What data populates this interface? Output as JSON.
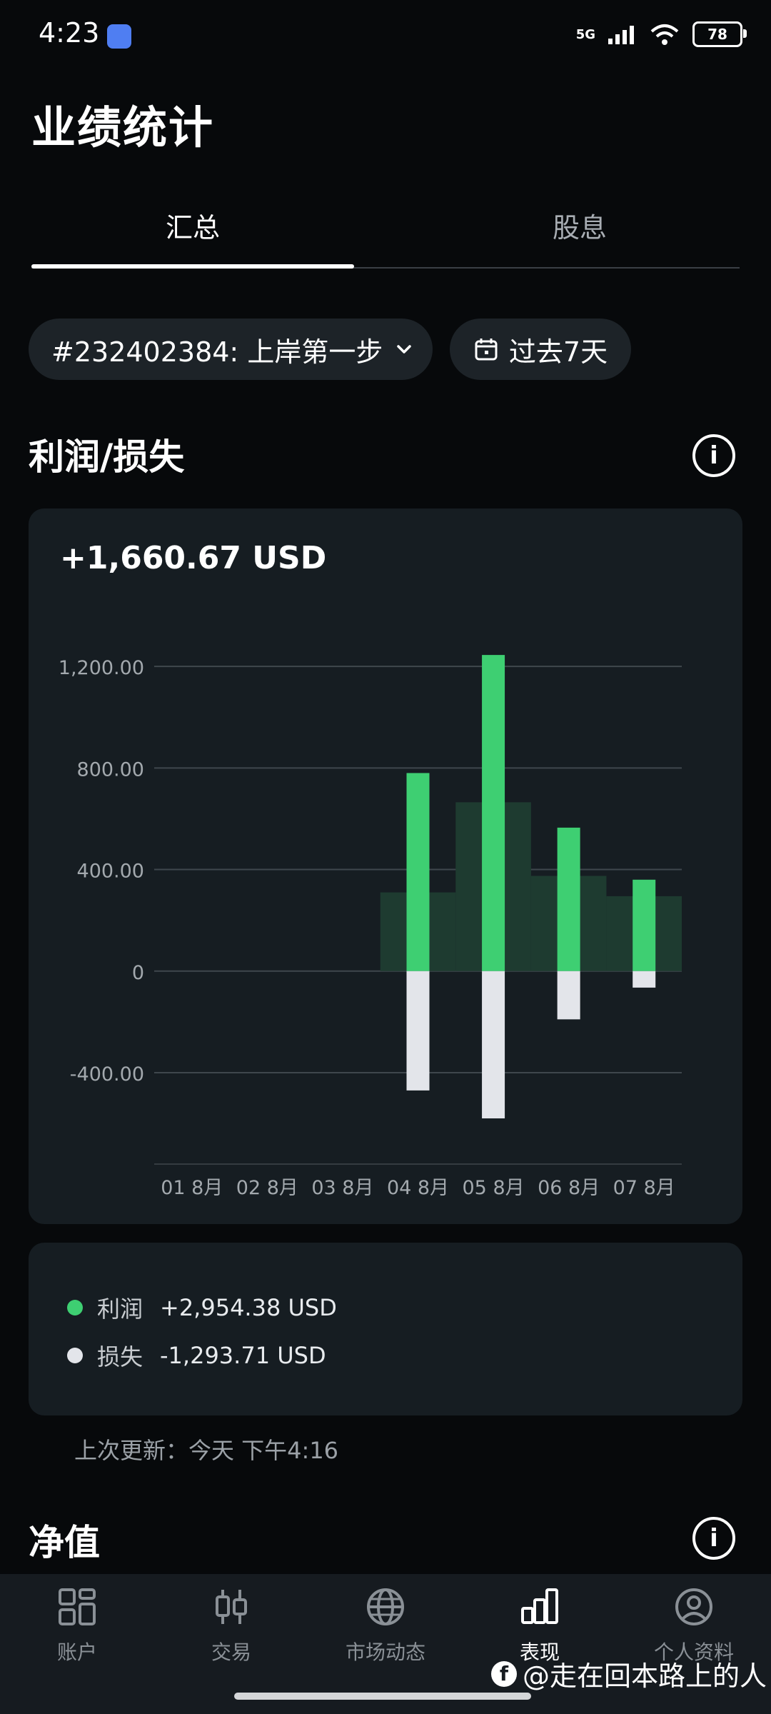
{
  "status": {
    "time": "4:23",
    "network": "5G",
    "battery": "78"
  },
  "header": {
    "title": "业绩统计"
  },
  "tabs": [
    {
      "label": "汇总"
    },
    {
      "label": "股息"
    }
  ],
  "filters": {
    "account": "#232402384: 上岸第一步",
    "period": "过去7天"
  },
  "profit_loss": {
    "title": "利润/损失",
    "total": "+1,660.67 USD",
    "legend": [
      {
        "label": "利润",
        "value": "+2,954.38 USD",
        "color": "#3ecf72"
      },
      {
        "label": "损失",
        "value": "-1,293.71 USD",
        "color": "#e3e5ea"
      }
    ],
    "last_update": "上次更新：今天 下午4:16"
  },
  "chart_data": {
    "type": "bar",
    "categories": [
      "01 8月",
      "02 8月",
      "03 8月",
      "04 8月",
      "05 8月",
      "06 8月",
      "07 8月"
    ],
    "series": [
      {
        "name": "利润",
        "values": [
          0,
          0,
          0,
          780,
          1245,
          565,
          360
        ],
        "color": "#3ecf72"
      },
      {
        "name": "损失",
        "values": [
          0,
          0,
          0,
          -470,
          -580,
          -190,
          -65
        ],
        "color": "#e3e5ea"
      }
    ],
    "net": [
      0,
      0,
      0,
      310,
      665,
      375,
      295
    ],
    "yticks": [
      "1,200.00",
      "800.00",
      "400.00",
      "0",
      "-400.00"
    ],
    "ytick_values": [
      1200,
      800,
      400,
      0,
      -400
    ],
    "ylim": [
      -760,
      1400
    ],
    "grid": true
  },
  "net_value": {
    "title": "净值"
  },
  "bottom_nav": [
    {
      "label": "账户",
      "icon": "grid-icon"
    },
    {
      "label": "交易",
      "icon": "candlestick-icon"
    },
    {
      "label": "市场动态",
      "icon": "globe-icon"
    },
    {
      "label": "表现",
      "icon": "bar-chart-icon"
    },
    {
      "label": "个人资料",
      "icon": "user-icon"
    }
  ],
  "watermark": "@走在回本路上的人"
}
